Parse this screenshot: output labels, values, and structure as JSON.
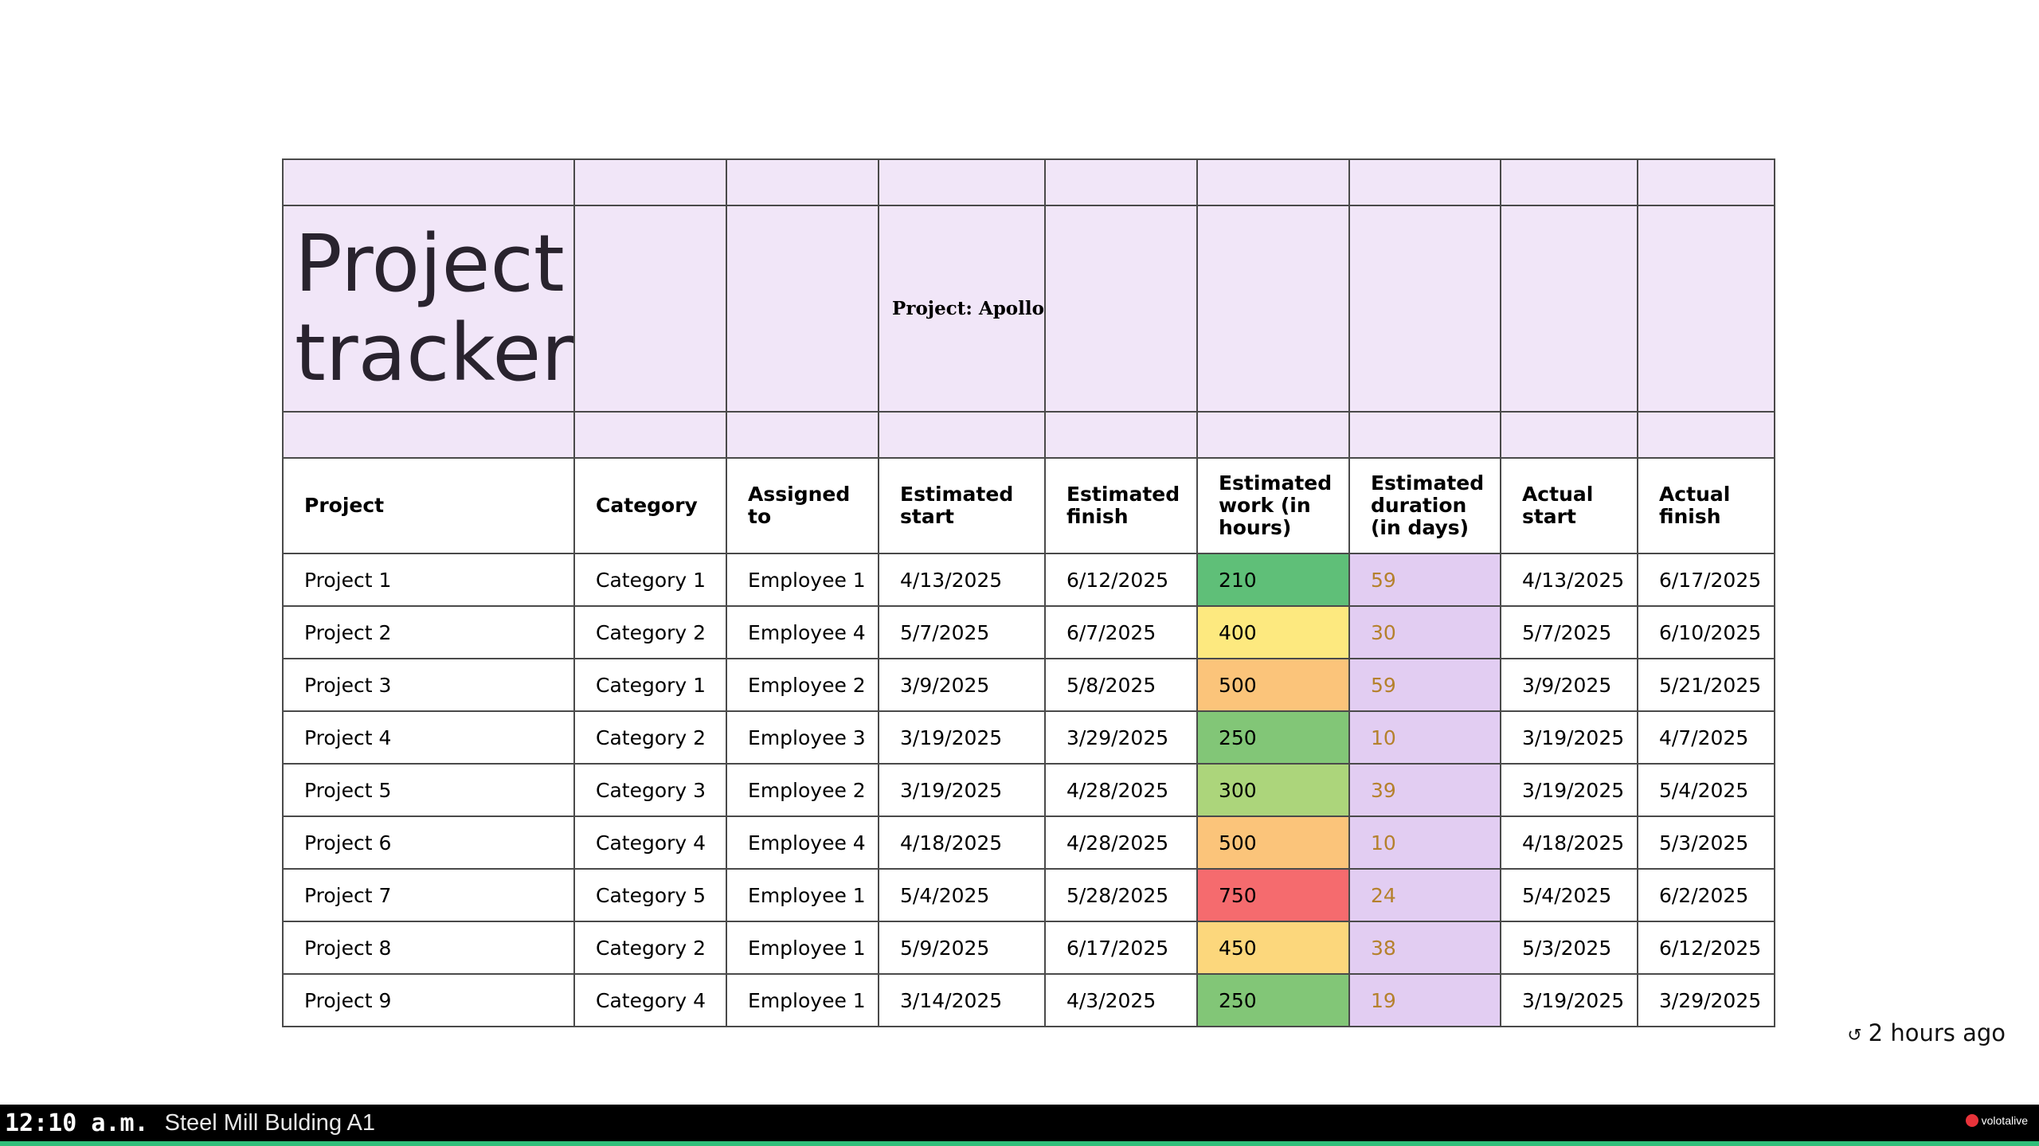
{
  "title": "Project tracker",
  "project_label": "Project: Apollo",
  "headers": [
    "Project",
    "Category",
    "Assigned to",
    "Estimated start",
    "Estimated finish",
    "Estimated work (in hours)",
    "Estimated duration (in days)",
    "Actual start",
    "Actual finish"
  ],
  "rows": [
    {
      "project": "Project 1",
      "category": "Category 1",
      "assigned": "Employee 1",
      "est_start": "4/13/2025",
      "est_finish": "6/12/2025",
      "work": "210",
      "work_color": "#5fbf78",
      "duration": "59",
      "act_start": "4/13/2025",
      "act_finish": "6/17/2025"
    },
    {
      "project": "Project 2",
      "category": "Category 2",
      "assigned": "Employee 4",
      "est_start": "5/7/2025",
      "est_finish": "6/7/2025",
      "work": "400",
      "work_color": "#fde97f",
      "duration": "30",
      "act_start": "5/7/2025",
      "act_finish": "6/10/2025"
    },
    {
      "project": "Project 3",
      "category": "Category 1",
      "assigned": "Employee 2",
      "est_start": "3/9/2025",
      "est_finish": "5/8/2025",
      "work": "500",
      "work_color": "#fbc47a",
      "duration": "59",
      "act_start": "3/9/2025",
      "act_finish": "5/21/2025"
    },
    {
      "project": "Project 4",
      "category": "Category 2",
      "assigned": "Employee 3",
      "est_start": "3/19/2025",
      "est_finish": "3/29/2025",
      "work": "250",
      "work_color": "#82c677",
      "duration": "10",
      "act_start": "3/19/2025",
      "act_finish": "4/7/2025"
    },
    {
      "project": "Project 5",
      "category": "Category 3",
      "assigned": "Employee 2",
      "est_start": "3/19/2025",
      "est_finish": "4/28/2025",
      "work": "300",
      "work_color": "#acd57b",
      "duration": "39",
      "act_start": "3/19/2025",
      "act_finish": "5/4/2025"
    },
    {
      "project": "Project 6",
      "category": "Category 4",
      "assigned": "Employee 4",
      "est_start": "4/18/2025",
      "est_finish": "4/28/2025",
      "work": "500",
      "work_color": "#fbc47a",
      "duration": "10",
      "act_start": "4/18/2025",
      "act_finish": "5/3/2025"
    },
    {
      "project": "Project 7",
      "category": "Category 5",
      "assigned": "Employee 1",
      "est_start": "5/4/2025",
      "est_finish": "5/28/2025",
      "work": "750",
      "work_color": "#f56b6e",
      "duration": "24",
      "act_start": "5/4/2025",
      "act_finish": "6/2/2025"
    },
    {
      "project": "Project 8",
      "category": "Category 2",
      "assigned": "Employee 1",
      "est_start": "5/9/2025",
      "est_finish": "6/17/2025",
      "work": "450",
      "work_color": "#fcd77c",
      "duration": "38",
      "act_start": "5/3/2025",
      "act_finish": "6/12/2025"
    },
    {
      "project": "Project 9",
      "category": "Category 4",
      "assigned": "Employee 1",
      "est_start": "3/14/2025",
      "est_finish": "4/3/2025",
      "work": "250",
      "work_color": "#82c677",
      "duration": "19",
      "act_start": "3/19/2025",
      "act_finish": "3/29/2025"
    }
  ],
  "refresh": {
    "icon": "refresh-icon",
    "text": "2 hours ago"
  },
  "footer": {
    "time": "12:10 a.m.",
    "location": "Steel Mill Bulding A1",
    "brand": "volotalive",
    "brand_icon": "record-dot-icon"
  }
}
